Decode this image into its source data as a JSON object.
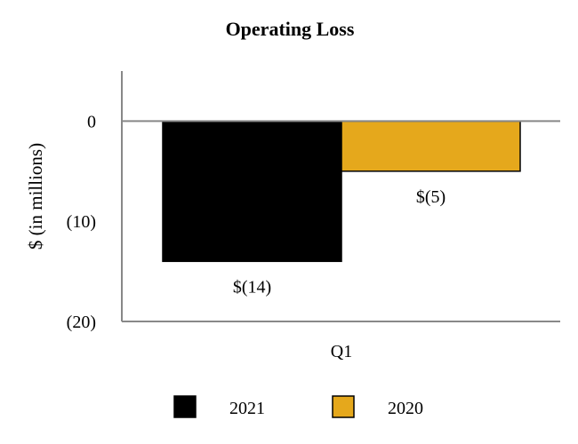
{
  "chart_data": {
    "type": "bar",
    "title": "Operating Loss",
    "ylabel": "$ (in millions)",
    "xlabel": "",
    "categories": [
      "Q1"
    ],
    "series": [
      {
        "name": "2021",
        "values": [
          -14
        ],
        "data_label": "$(14)",
        "color": "#000000"
      },
      {
        "name": "2020",
        "values": [
          -5
        ],
        "data_label": "$(5)",
        "color": "#E5A81C"
      }
    ],
    "ylim": [
      -20,
      5
    ],
    "yticks": [
      {
        "value": 0,
        "label": "0"
      },
      {
        "value": -10,
        "label": "(10)"
      },
      {
        "value": -20,
        "label": "(20)"
      }
    ],
    "grid": false,
    "legend_position": "bottom"
  }
}
